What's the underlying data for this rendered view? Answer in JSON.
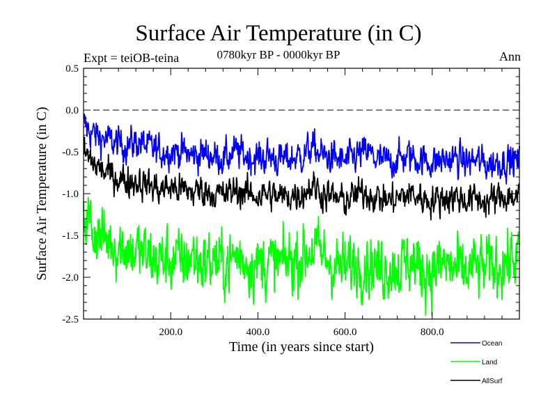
{
  "chart_data": {
    "type": "line",
    "title": "Surface Air Temperature (in C)",
    "subtitle": "0780kyr BP - 0000kyr BP",
    "annotation_left": "Expt = teiOB-teina",
    "annotation_right": "Ann",
    "xlabel": "Time (in years since start)",
    "ylabel": "Surface Air Temperature (in C)",
    "xlim": [
      0,
      1000
    ],
    "ylim": [
      -2.5,
      0.5
    ],
    "xticks": [
      200,
      400,
      600,
      800
    ],
    "xtick_labels": [
      "200.0",
      "400.0",
      "600.0",
      "800.0"
    ],
    "yticks": [
      0.5,
      0.0,
      -0.5,
      -1.0,
      -1.5,
      -2.0,
      -2.5
    ],
    "ytick_labels": [
      "0.5",
      "0.0",
      "-0.5",
      "-1.0",
      "-1.5",
      "-2.0",
      "-2.5"
    ],
    "reference_line": 0.0,
    "series": [
      {
        "name": "Ocean",
        "color": "#0000ff",
        "x": [
          0,
          25,
          50,
          75,
          100,
          125,
          150,
          175,
          200,
          225,
          250,
          275,
          300,
          325,
          350,
          375,
          400,
          425,
          450,
          475,
          500,
          525,
          550,
          575,
          600,
          625,
          650,
          675,
          700,
          725,
          750,
          775,
          800,
          825,
          850,
          875,
          900,
          925,
          950,
          975,
          1000
        ],
        "values": [
          -0.18,
          -0.3,
          -0.35,
          -0.4,
          -0.42,
          -0.38,
          -0.45,
          -0.5,
          -0.48,
          -0.5,
          -0.55,
          -0.52,
          -0.55,
          -0.58,
          -0.5,
          -0.55,
          -0.58,
          -0.55,
          -0.6,
          -0.58,
          -0.55,
          -0.45,
          -0.55,
          -0.58,
          -0.62,
          -0.55,
          -0.5,
          -0.6,
          -0.62,
          -0.58,
          -0.55,
          -0.6,
          -0.62,
          -0.6,
          -0.58,
          -0.62,
          -0.6,
          -0.65,
          -0.62,
          -0.6,
          -0.62
        ]
      },
      {
        "name": "Land",
        "color": "#00ff00",
        "x": [
          0,
          25,
          50,
          75,
          100,
          125,
          150,
          175,
          200,
          225,
          250,
          275,
          300,
          325,
          350,
          375,
          400,
          425,
          450,
          475,
          500,
          525,
          550,
          575,
          600,
          625,
          650,
          675,
          700,
          725,
          750,
          775,
          800,
          825,
          850,
          875,
          900,
          925,
          950,
          975,
          1000
        ],
        "values": [
          -1.2,
          -1.45,
          -1.55,
          -1.6,
          -1.65,
          -1.7,
          -1.75,
          -1.8,
          -1.78,
          -1.8,
          -1.75,
          -1.82,
          -1.8,
          -1.85,
          -1.75,
          -1.8,
          -1.85,
          -1.82,
          -1.85,
          -1.8,
          -1.75,
          -1.65,
          -1.75,
          -1.85,
          -1.9,
          -1.85,
          -1.8,
          -1.9,
          -1.85,
          -1.88,
          -1.8,
          -1.9,
          -1.92,
          -1.85,
          -1.9,
          -1.95,
          -1.88,
          -1.9,
          -1.85,
          -1.8,
          -1.75
        ]
      },
      {
        "name": "AllSurf",
        "color": "#000000",
        "x": [
          0,
          25,
          50,
          75,
          100,
          125,
          150,
          175,
          200,
          225,
          250,
          275,
          300,
          325,
          350,
          375,
          400,
          425,
          450,
          475,
          500,
          525,
          550,
          575,
          600,
          625,
          650,
          675,
          700,
          725,
          750,
          775,
          800,
          825,
          850,
          875,
          900,
          925,
          950,
          975,
          1000
        ],
        "values": [
          -0.5,
          -0.65,
          -0.75,
          -0.8,
          -0.85,
          -0.85,
          -0.9,
          -0.95,
          -0.92,
          -0.95,
          -0.98,
          -0.95,
          -1.0,
          -1.02,
          -0.95,
          -1.0,
          -1.02,
          -1.0,
          -1.05,
          -1.02,
          -1.0,
          -0.9,
          -1.0,
          -1.05,
          -1.08,
          -1.02,
          -0.98,
          -1.05,
          -1.08,
          -1.05,
          -1.0,
          -1.05,
          -1.08,
          -1.05,
          -1.03,
          -1.08,
          -1.05,
          -1.1,
          -1.05,
          -1.03,
          -1.05
        ]
      }
    ],
    "legend": [
      "Ocean",
      "Land",
      "AllSurf"
    ],
    "legend_position": "bottom-right"
  }
}
